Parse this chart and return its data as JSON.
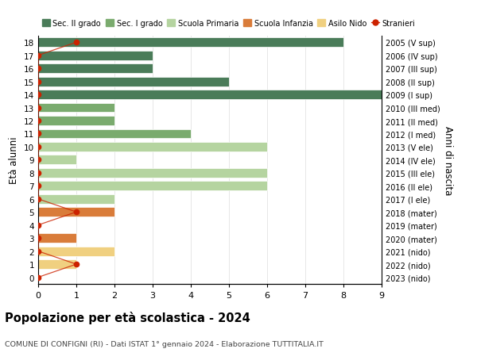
{
  "ages": [
    18,
    17,
    16,
    15,
    14,
    13,
    12,
    11,
    10,
    9,
    8,
    7,
    6,
    5,
    4,
    3,
    2,
    1,
    0
  ],
  "right_labels": [
    "2005 (V sup)",
    "2006 (IV sup)",
    "2007 (III sup)",
    "2008 (II sup)",
    "2009 (I sup)",
    "2010 (III med)",
    "2011 (II med)",
    "2012 (I med)",
    "2013 (V ele)",
    "2014 (IV ele)",
    "2015 (III ele)",
    "2016 (II ele)",
    "2017 (I ele)",
    "2018 (mater)",
    "2019 (mater)",
    "2020 (mater)",
    "2021 (nido)",
    "2022 (nido)",
    "2023 (nido)"
  ],
  "bar_values": [
    8,
    3,
    3,
    5,
    9,
    2,
    2,
    4,
    6,
    1,
    6,
    6,
    2,
    2,
    0,
    1,
    2,
    1,
    0
  ],
  "bar_colors": [
    "#4a7c59",
    "#4a7c59",
    "#4a7c59",
    "#4a7c59",
    "#4a7c59",
    "#7aab6e",
    "#7aab6e",
    "#7aab6e",
    "#b5d4a0",
    "#b5d4a0",
    "#b5d4a0",
    "#b5d4a0",
    "#b5d4a0",
    "#d97c3a",
    "#d97c3a",
    "#d97c3a",
    "#f0d080",
    "#f0d080",
    "#f0d080"
  ],
  "stranieri_x": [
    1,
    0,
    0,
    0,
    0,
    0,
    0,
    0,
    0,
    0,
    0,
    0,
    0,
    1,
    0,
    0,
    0,
    1,
    0
  ],
  "legend_labels": [
    "Sec. II grado",
    "Sec. I grado",
    "Scuola Primaria",
    "Scuola Infanzia",
    "Asilo Nido",
    "Stranieri"
  ],
  "legend_colors": [
    "#4a7c59",
    "#7aab6e",
    "#b5d4a0",
    "#d97c3a",
    "#f0d080",
    "#cc2200"
  ],
  "ylabel_left": "Età alunni",
  "ylabel_right": "Anni di nascita",
  "title": "Popolazione per età scolastica - 2024",
  "subtitle": "COMUNE DI CONFIGNI (RI) - Dati ISTAT 1° gennaio 2024 - Elaborazione TUTTITALIA.IT",
  "xlim": [
    0,
    9
  ],
  "background_color": "#ffffff",
  "grid_color": "#dddddd"
}
